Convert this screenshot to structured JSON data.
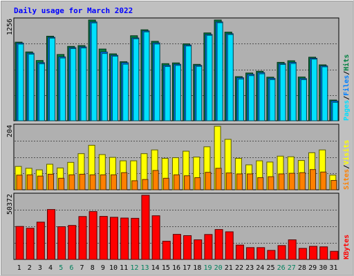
{
  "chart_data": {
    "type": "bar",
    "title": "Daily usage for March 2022",
    "colors": {
      "hits": "#008040",
      "files": "#0080ff",
      "pages": "#00e0ff",
      "visits": "#ffff00",
      "sites": "#ff8000",
      "kbytes": "#ff0000",
      "title": "#0000ff",
      "weekend": "#00805c",
      "weekday": "#000000",
      "frame_bg": "#c0c0c0",
      "plot_bg": "#b0b0b0"
    },
    "categories": [
      "1",
      "2",
      "3",
      "4",
      "5",
      "6",
      "7",
      "8",
      "9",
      "10",
      "11",
      "12",
      "13",
      "14",
      "15",
      "16",
      "17",
      "18",
      "19",
      "20",
      "21",
      "22",
      "23",
      "24",
      "25",
      "26",
      "27",
      "28",
      "29",
      "30",
      "31"
    ],
    "weekend_days": [
      "5",
      "6",
      "12",
      "13",
      "19",
      "20",
      "26",
      "27"
    ],
    "panels": {
      "top": {
        "ymax": 1256,
        "ymax_label": "1256",
        "legend": [
          {
            "key": "pages",
            "label": "Pages"
          },
          {
            "key": "sep",
            "label": "/"
          },
          {
            "key": "files",
            "label": "Files"
          },
          {
            "key": "sep",
            "label": "/"
          },
          {
            "key": "hits",
            "label": "Hits"
          }
        ],
        "series": [
          {
            "key": "hits",
            "values": [
              980,
              858,
              751,
              1054,
              826,
              927,
              937,
              1256,
              894,
              834,
              736,
              1060,
              1134,
              990,
              712,
              721,
              959,
              703,
              1095,
              1256,
              1105,
              550,
              595,
              617,
              543,
              728,
              748,
              545,
              792,
              697,
              258
            ]
          },
          {
            "key": "files",
            "values": [
              968,
              842,
              724,
              1040,
              796,
              911,
              920,
              1232,
              857,
              816,
              723,
              1032,
              1120,
              970,
              690,
              704,
              944,
              690,
              1076,
              1232,
              1085,
              536,
              578,
              600,
              528,
              712,
              728,
              526,
              779,
              684,
              246
            ]
          },
          {
            "key": "pages",
            "values": [
              955,
              830,
              710,
              1030,
              782,
              900,
              908,
              1220,
              838,
              805,
              705,
              1022,
              1108,
              956,
              676,
              690,
              932,
              678,
              1065,
              1222,
              1075,
              520,
              562,
              585,
              512,
              702,
              714,
              512,
              768,
              672,
              229
            ]
          }
        ]
      },
      "middle": {
        "ymax": 204,
        "ymax_label": "204",
        "legend": [
          {
            "key": "sites",
            "label": "Sites"
          },
          {
            "key": "sep",
            "label": "/"
          },
          {
            "key": "visits",
            "label": "Visits"
          }
        ],
        "series": [
          {
            "key": "visits",
            "values": [
              75,
              69,
              64,
              82,
              70,
              88,
              116,
              143,
              113,
              104,
              93,
              93,
              116,
              128,
              101,
              103,
              124,
              105,
              138,
              204,
              162,
              101,
              80,
              93,
              89,
              108,
              106,
              94,
              119,
              128,
              47
            ]
          },
          {
            "key": "sites",
            "values": [
              47,
              48,
              44,
              50,
              37,
              48,
              50,
              48,
              48,
              48,
              55,
              29,
              33,
              62,
              37,
              48,
              45,
              39,
              56,
              69,
              54,
              51,
              51,
              39,
              42,
              51,
              53,
              55,
              65,
              57,
              30
            ]
          }
        ]
      },
      "bottom": {
        "ymax": 50372,
        "ymax_label": "50372",
        "legend": [
          {
            "key": "kbytes",
            "label": "KBytes"
          }
        ],
        "series": [
          {
            "key": "kbytes",
            "values": [
              25900,
              24500,
              29300,
              39200,
              25700,
              26700,
              33700,
              37600,
              33800,
              33100,
              32500,
              32300,
              50372,
              34300,
              14300,
              19700,
              18700,
              15400,
              19600,
              23500,
              21700,
              11300,
              9300,
              9300,
              7100,
              10900,
              15400,
              8700,
              10300,
              9900,
              6400
            ]
          }
        ]
      }
    }
  }
}
